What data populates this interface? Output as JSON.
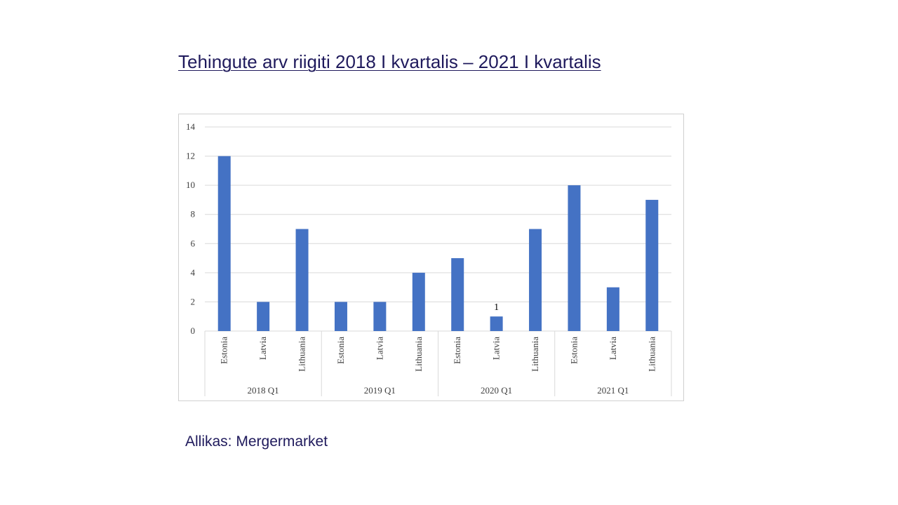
{
  "title": "Tehingute arv riigiti 2018 I kvartalis – 2021 I kvartalis",
  "source": "Allikas: Mergermarket",
  "chart_data": {
    "type": "bar",
    "title": "",
    "xlabel": "",
    "ylabel": "",
    "ylim": [
      0,
      14
    ],
    "yticks": [
      0,
      2,
      4,
      6,
      8,
      10,
      12,
      14
    ],
    "grid": true,
    "groups": [
      "2018 Q1",
      "2019 Q1",
      "2020 Q1",
      "2021 Q1"
    ],
    "categories": [
      "Estonia",
      "Latvia",
      "Lithuania"
    ],
    "values": [
      [
        12,
        2,
        7
      ],
      [
        2,
        2,
        4
      ],
      [
        5,
        1,
        7
      ],
      [
        10,
        3,
        9
      ]
    ],
    "data_labels": [
      {
        "group": "2020 Q1",
        "category": "Latvia",
        "text": "1"
      }
    ],
    "bar_color": "#4472c4"
  }
}
